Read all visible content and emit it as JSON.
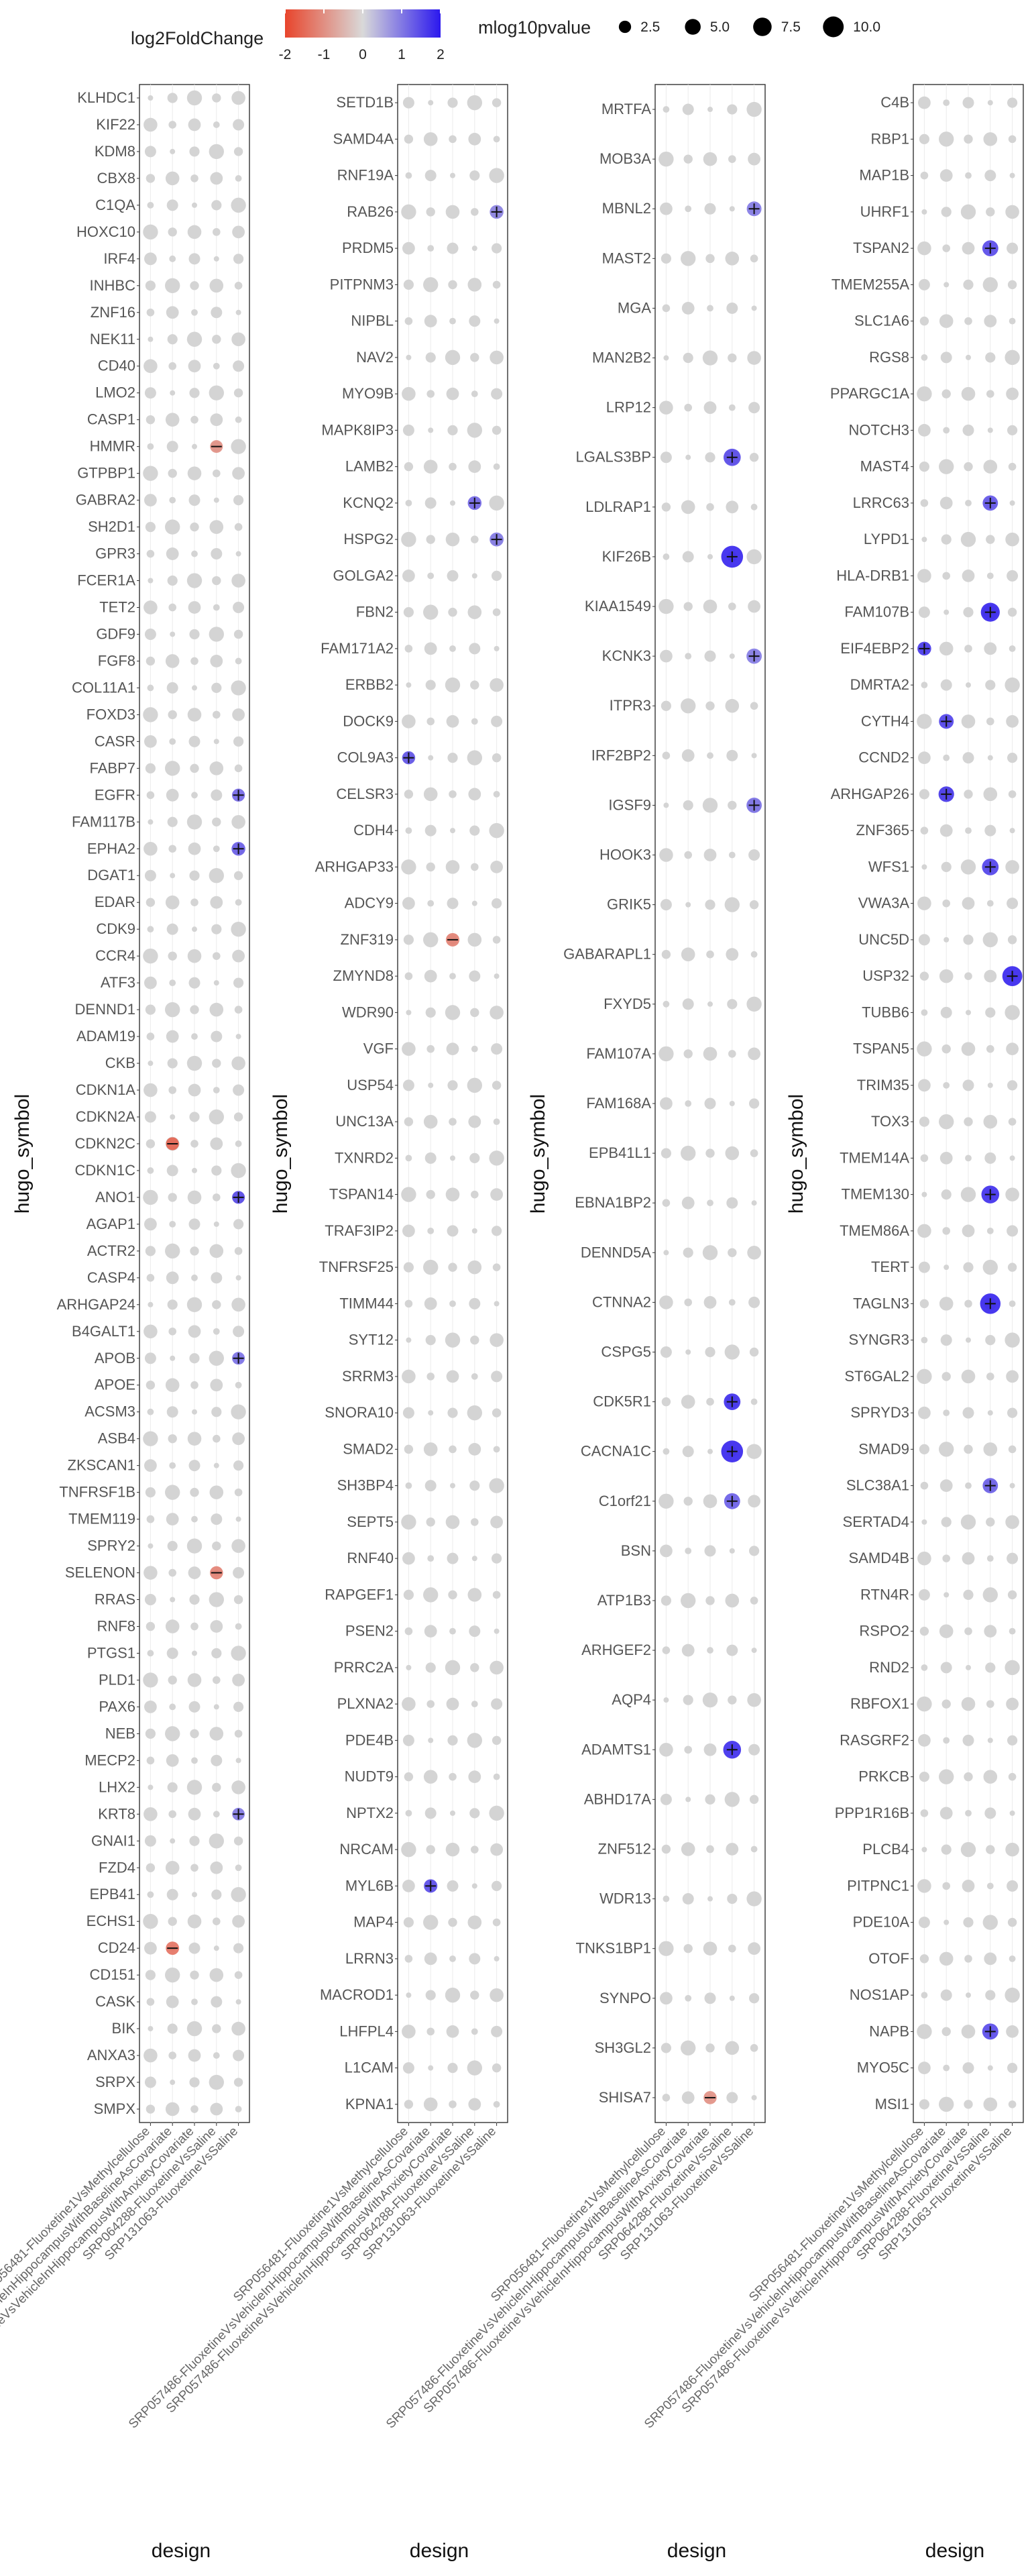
{
  "chart_data": {
    "type": "dot-plot-facets",
    "legend": {
      "color_title": "log2FoldChange",
      "color_ticks": [
        "-2",
        "-1",
        "0",
        "1",
        "2"
      ],
      "color_low": "#e8452c",
      "color_mid": "#d9d9d9",
      "color_high": "#2b18ee",
      "size_title": "mlog10pvalue",
      "size_ticks": [
        "2.5",
        "5.0",
        "7.5",
        "10.0"
      ],
      "size_values": [
        2.5,
        5.0,
        7.5,
        10.0
      ]
    },
    "y_axis_title": "hugo_symbol",
    "x_axis_title": "design",
    "designs": [
      "SRP056481-Fluoxetine1VsMethylcellulose",
      "SRP057486-FluoxetineVsVehicleInHippocampusWithBaselineAsCovariate",
      "SRP057486-FluoxetineVsVehicleInHippocampusWithAnxietyCovariate",
      "SRP064288-FluoxetineVsSaline",
      "SRP131063-FluoxetineVsSaline"
    ],
    "panels": [
      {
        "name": "panel-1",
        "genes": [
          "KLHDC1",
          "KIF22",
          "KDM8",
          "CBX8",
          "C1QA",
          "HOXC10",
          "IRF4",
          "INHBC",
          "ZNF16",
          "NEK11",
          "CD40",
          "LMO2",
          "CASP1",
          "HMMR",
          "GTPBP1",
          "GABRA2",
          "SH2D1",
          "GPR3",
          "FCER1A",
          "TET2",
          "GDF9",
          "FGF8",
          "COL11A1",
          "FOXD3",
          "CASR",
          "FABP7",
          "EGFR",
          "FAM117B",
          "EPHA2",
          "DGAT1",
          "EDAR",
          "CDK9",
          "CCR4",
          "ATF3",
          "DENND1",
          "ADAM19",
          "CKB",
          "CDKN1A",
          "CDKN2A",
          "CDKN2C",
          "CDKN1C",
          "ANO1",
          "AGAP1",
          "ACTR2",
          "CASP4",
          "ARHGAP24",
          "B4GALT1",
          "APOB",
          "APOE",
          "ACSM3",
          "ASB4",
          "ZKSCAN1",
          "TNFRSF1B",
          "TMEM119",
          "SPRY2",
          "SELENON",
          "RRAS",
          "RNF8",
          "PTGS1",
          "PLD1",
          "PAX6",
          "NEB",
          "MECP2",
          "LHX2",
          "KRT8",
          "GNAI1",
          "FZD4",
          "EPB41",
          "ECHS1",
          "CD24",
          "CD151",
          "CASK",
          "BIK",
          "ANXA3",
          "SRPX",
          "SMPX"
        ],
        "cells": [
          {
            "g": "CDKN2C",
            "d": 1,
            "l2fc": -1.6,
            "p": 2.5
          },
          {
            "g": "EPHA2",
            "d": 4,
            "l2fc": 1.3,
            "p": 3.0
          },
          {
            "g": "EGFR",
            "d": 4,
            "l2fc": 1.2,
            "p": 2.5
          },
          {
            "g": "ANO1",
            "d": 4,
            "l2fc": 1.5,
            "p": 2.4
          },
          {
            "g": "SELENON",
            "d": 3,
            "l2fc": -1.2,
            "p": 2.6
          },
          {
            "g": "APOB",
            "d": 4,
            "l2fc": 1.1,
            "p": 2.4
          },
          {
            "g": "KRT8",
            "d": 4,
            "l2fc": 1.0,
            "p": 2.3
          },
          {
            "g": "CD24",
            "d": 1,
            "l2fc": -1.4,
            "p": 2.7
          },
          {
            "g": "HMMR",
            "d": 3,
            "l2fc": -1.0,
            "p": 2.4
          }
        ]
      },
      {
        "name": "panel-2",
        "genes": [
          "SETD1B",
          "SAMD4A",
          "RNF19A",
          "RAB26",
          "PRDM5",
          "PITPNM3",
          "NIPBL",
          "NAV2",
          "MYO9B",
          "MAPK8IP3",
          "LAMB2",
          "KCNQ2",
          "HSPG2",
          "GOLGA2",
          "FBN2",
          "FAM171A2",
          "ERBB2",
          "DOCK9",
          "COL9A3",
          "CELSR3",
          "CDH4",
          "ARHGAP33",
          "ADCY9",
          "ZNF319",
          "ZMYND8",
          "WDR90",
          "VGF",
          "USP54",
          "UNC13A",
          "TXNRD2",
          "TSPAN14",
          "TRAF3IP2",
          "TNFRSF25",
          "TIMM44",
          "SYT12",
          "SRRM3",
          "SNORA10",
          "SMAD2",
          "SH3BP4",
          "SEPT5",
          "RNF40",
          "RAPGEF1",
          "PSEN2",
          "PRRC2A",
          "PLXNA2",
          "PDE4B",
          "NUDT9",
          "NPTX2",
          "NRCAM",
          "MYL6B",
          "MAP4",
          "LRRN3",
          "MACROD1",
          "LHFPL4",
          "L1CAM",
          "KPNA1"
        ],
        "cells": [
          {
            "g": "COL9A3",
            "d": 0,
            "l2fc": 1.4,
            "p": 2.6
          },
          {
            "g": "MYL6B",
            "d": 1,
            "l2fc": 1.5,
            "p": 2.8
          },
          {
            "g": "KCNQ2",
            "d": 3,
            "l2fc": 1.2,
            "p": 3.0
          },
          {
            "g": "HSPG2",
            "d": 4,
            "l2fc": 1.0,
            "p": 3.1
          },
          {
            "g": "RAB26",
            "d": 4,
            "l2fc": 0.9,
            "p": 3.0
          },
          {
            "g": "ZNF319",
            "d": 2,
            "l2fc": -1.2,
            "p": 2.8
          }
        ]
      },
      {
        "name": "panel-3",
        "genes": [
          "MRTFA",
          "MOB3A",
          "MBNL2",
          "MAST2",
          "MGA",
          "MAN2B2",
          "LRP12",
          "LGALS3BP",
          "LDLRAP1",
          "KIF26B",
          "KIAA1549",
          "KCNK3",
          "ITPR3",
          "IRF2BP2",
          "IGSF9",
          "HOOK3",
          "GRIK5",
          "GABARAPL1",
          "FXYD5",
          "FAM107A",
          "FAM168A",
          "EPB41L1",
          "EBNA1BP2",
          "DENND5A",
          "CTNNA2",
          "CSPG5",
          "CDK5R1",
          "CACNA1C",
          "C1orf21",
          "BSN",
          "ATP1B3",
          "ARHGEF2",
          "AQP4",
          "ADAMTS1",
          "ABHD17A",
          "ZNF512",
          "WDR13",
          "TNKS1BP1",
          "SYNPO",
          "SH3GL2",
          "SHISA7"
        ],
        "cells": [
          {
            "g": "KIF26B",
            "d": 3,
            "l2fc": 1.9,
            "p": 10.0
          },
          {
            "g": "CACNA1C",
            "d": 3,
            "l2fc": 1.9,
            "p": 10.0
          },
          {
            "g": "ADAMTS1",
            "d": 3,
            "l2fc": 1.8,
            "p": 6.0
          },
          {
            "g": "CDK5R1",
            "d": 3,
            "l2fc": 1.8,
            "p": 5.0
          },
          {
            "g": "LGALS3BP",
            "d": 3,
            "l2fc": 1.5,
            "p": 5.5
          },
          {
            "g": "C1orf21",
            "d": 3,
            "l2fc": 1.3,
            "p": 4.5
          },
          {
            "g": "IGSF9",
            "d": 4,
            "l2fc": 1.1,
            "p": 4.0
          },
          {
            "g": "KCNK3",
            "d": 4,
            "l2fc": 1.0,
            "p": 4.0
          },
          {
            "g": "MBNL2",
            "d": 4,
            "l2fc": 1.0,
            "p": 3.6
          },
          {
            "g": "SHISA7",
            "d": 2,
            "l2fc": -1.0,
            "p": 2.6
          }
        ]
      },
      {
        "name": "panel-4",
        "genes": [
          "C4B",
          "RBP1",
          "MAP1B",
          "UHRF1",
          "TSPAN2",
          "TMEM255A",
          "SLC1A6",
          "RGS8",
          "PPARGC1A",
          "NOTCH3",
          "MAST4",
          "LRRC63",
          "LYPD1",
          "HLA-DRB1",
          "FAM107B",
          "EIF4EBP2",
          "DMRTA2",
          "CYTH4",
          "CCND2",
          "ARHGAP26",
          "ZNF365",
          "WFS1",
          "VWA3A",
          "UNC5D",
          "USP32",
          "TUBB6",
          "TSPAN5",
          "TRIM35",
          "TOX3",
          "TMEM14A",
          "TMEM130",
          "TMEM86A",
          "TERT",
          "TAGLN3",
          "SYNGR3",
          "ST6GAL2",
          "SPRYD3",
          "SMAD9",
          "SLC38A1",
          "SERTAD4",
          "SAMD4B",
          "RTN4R",
          "RSPO2",
          "RND2",
          "RBFOX1",
          "RASGRF2",
          "PRKCB",
          "PPP1R16B",
          "PLCB4",
          "PITPNC1",
          "PDE10A",
          "OTOF",
          "NOS1AP",
          "NAPB",
          "MYO5C",
          "MSI1"
        ],
        "cells": [
          {
            "g": "EIF4EBP2",
            "d": 0,
            "l2fc": 1.7,
            "p": 3.0
          },
          {
            "g": "CYTH4",
            "d": 1,
            "l2fc": 1.6,
            "p": 3.6
          },
          {
            "g": "ARHGAP26",
            "d": 1,
            "l2fc": 1.7,
            "p": 4.2
          },
          {
            "g": "FAM107B",
            "d": 3,
            "l2fc": 1.9,
            "p": 7.0
          },
          {
            "g": "USP32",
            "d": 4,
            "l2fc": 1.9,
            "p": 8.0
          },
          {
            "g": "TMEM130",
            "d": 3,
            "l2fc": 1.8,
            "p": 6.0
          },
          {
            "g": "TAGLN3",
            "d": 3,
            "l2fc": 1.9,
            "p": 8.5
          },
          {
            "g": "WFS1",
            "d": 3,
            "l2fc": 1.6,
            "p": 5.0
          },
          {
            "g": "TSPAN2",
            "d": 3,
            "l2fc": 1.5,
            "p": 4.5
          },
          {
            "g": "LRRC63",
            "d": 3,
            "l2fc": 1.4,
            "p": 4.0
          },
          {
            "g": "NAPB",
            "d": 3,
            "l2fc": 1.5,
            "p": 4.6
          },
          {
            "g": "SLC38A1",
            "d": 3,
            "l2fc": 1.3,
            "p": 4.0
          }
        ]
      }
    ]
  }
}
